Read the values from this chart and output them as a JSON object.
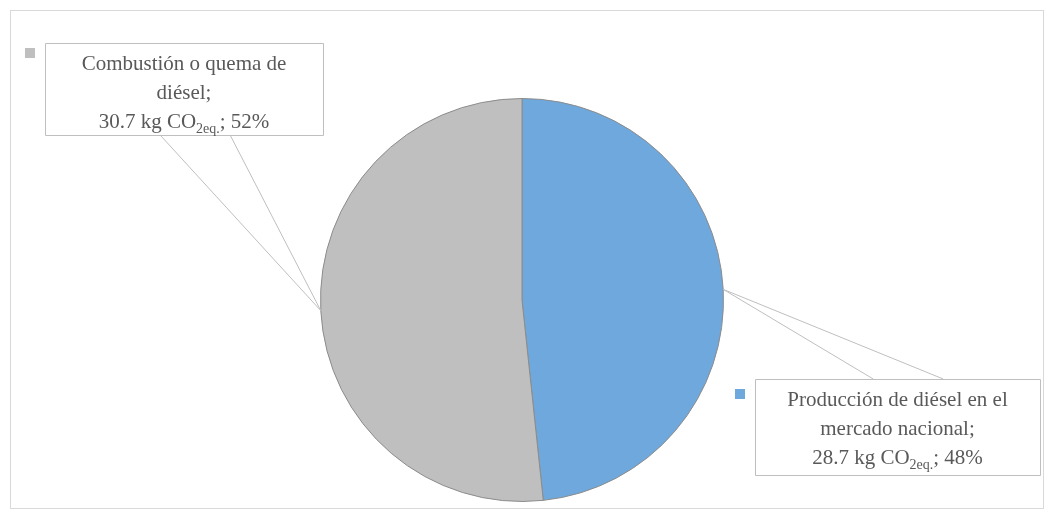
{
  "chart_data": {
    "type": "pie",
    "categories": [
      "Producción de diésel en el mercado nacional",
      "Combustión o quema de diésel"
    ],
    "values": [
      28.7,
      30.7
    ],
    "colors": [
      "#6fa8dc",
      "#bfbfbf"
    ],
    "value_labels": [
      "; 28.7 kg CO$_{2eq.}$; 48%",
      "; 30.7 kg CO$_{2eq.}$; 52%"
    ],
    "legend": "top left"
  }
}
